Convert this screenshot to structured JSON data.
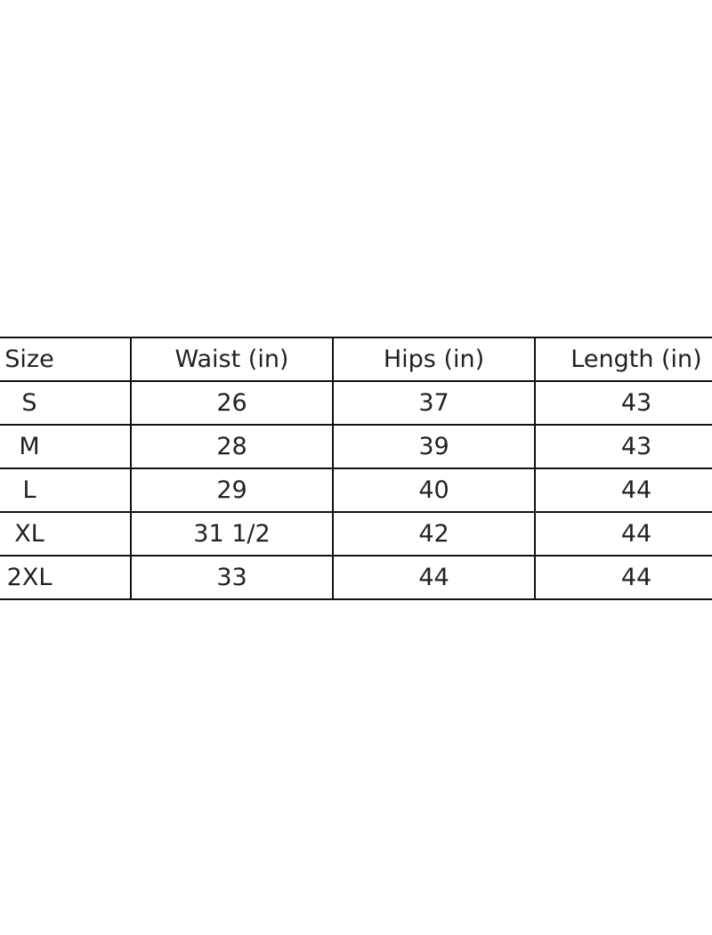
{
  "table": {
    "headers": [
      "Size",
      "Waist (in)",
      "Hips (in)",
      "Length (in)"
    ],
    "rows": [
      [
        "S",
        "26",
        "37",
        "43"
      ],
      [
        "M",
        "28",
        "39",
        "43"
      ],
      [
        "L",
        "29",
        "40",
        "44"
      ],
      [
        "XL",
        "31 1/2",
        "42",
        "44"
      ],
      [
        "2XL",
        "33",
        "44",
        "44"
      ]
    ]
  }
}
